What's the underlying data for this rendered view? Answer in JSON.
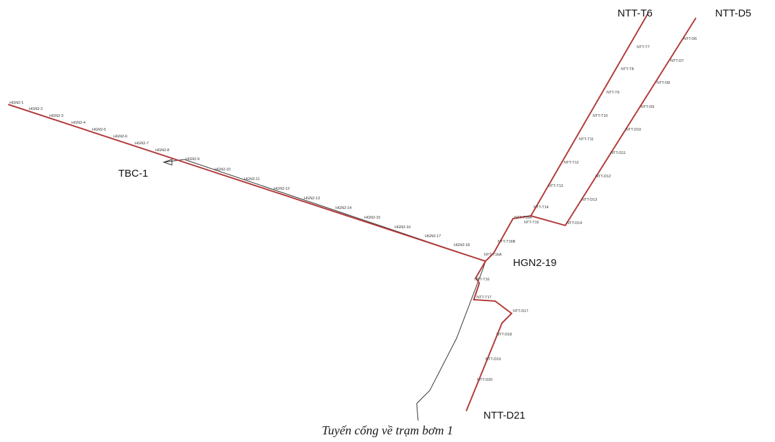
{
  "caption": "Tuyến cống về trạm bơm 1",
  "colors": {
    "main_pipe": "#b23a3a",
    "return_pipe": "#333333",
    "background": "#ffffff"
  },
  "labels": {
    "tbc": "TBC-1",
    "hgn2_19": "HGN2-19",
    "ntt_t6": "NTT-T6",
    "ntt_d5": "NTT-D5",
    "ntt_d21": "NTT-D21"
  },
  "manholes": {
    "hgn2": [
      "HGN2-1",
      "HGN2-2",
      "HGN2-3",
      "HGN2-4",
      "HGN2-5",
      "HGN2-6",
      "HGN2-7",
      "HGN2-8",
      "HGN2-9",
      "HGN2-10",
      "HGN2-11",
      "HGN2-12",
      "HGN2-13",
      "HGN2-14",
      "HGN2-15",
      "HGN2-16",
      "HGN2-17",
      "HGN2-18"
    ],
    "ntt_t": [
      "NTT-T7",
      "NTT-T8",
      "NTT-T9",
      "NTT-T10",
      "NTT-T11",
      "NTT-T12",
      "NTT-T13",
      "NTT-T14",
      "NTT-T15A",
      "NTT-T15",
      "NTT-T16B",
      "NTT-T16A",
      "NTT-T16",
      "NTT-T17"
    ],
    "ntt_d": [
      "NTT-D6",
      "NTT-D7",
      "NTT-D8",
      "NTT-D9",
      "NTT-D10",
      "NTT-D11",
      "NTT-D12",
      "NTT-D13",
      "NTT-D14",
      "NTT-D17",
      "NTT-D18",
      "NTT-D19",
      "NTT-D20"
    ]
  }
}
